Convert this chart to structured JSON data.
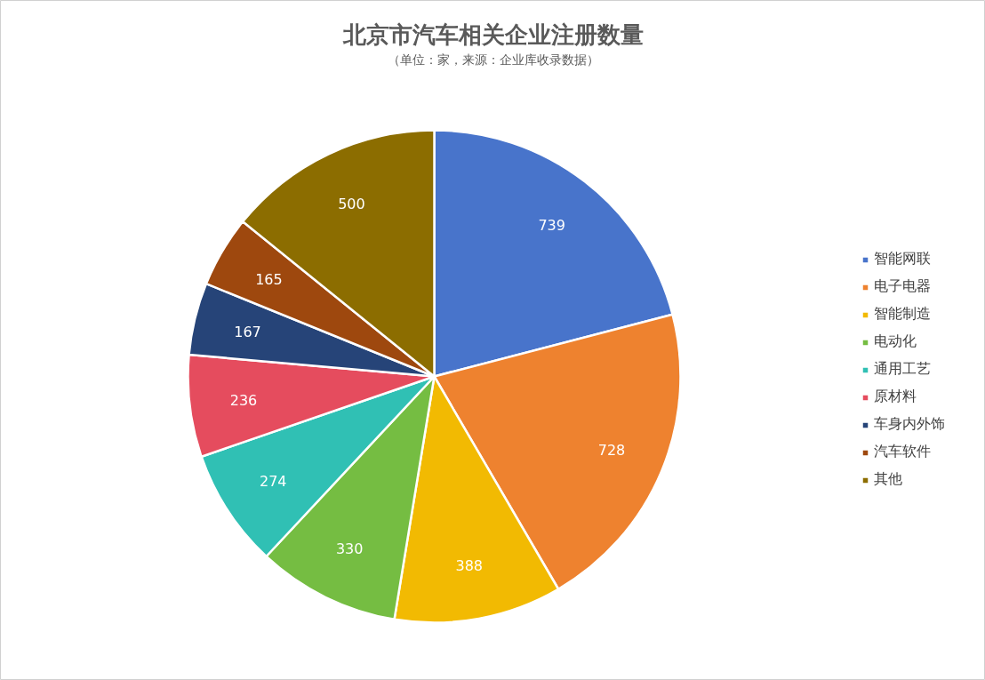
{
  "chart_data": {
    "type": "pie",
    "title": "北京市汽车相关企业注册数量",
    "subtitle": "（单位：家，来源：企业库收录数据）",
    "categories": [
      "智能网联",
      "电子电器",
      "智能制造",
      "电动化",
      "通用工艺",
      "原材料",
      "车身内外饰",
      "汽车软件",
      "其他"
    ],
    "values": [
      739,
      728,
      388,
      330,
      274,
      236,
      167,
      165,
      500
    ],
    "colors": [
      "#4874cb",
      "#ee822f",
      "#f2ba02",
      "#75bd42",
      "#30c0b4",
      "#e54c5e",
      "#264478",
      "#9e480e",
      "#8c6d00"
    ],
    "data_labels": true,
    "legend": "right"
  }
}
